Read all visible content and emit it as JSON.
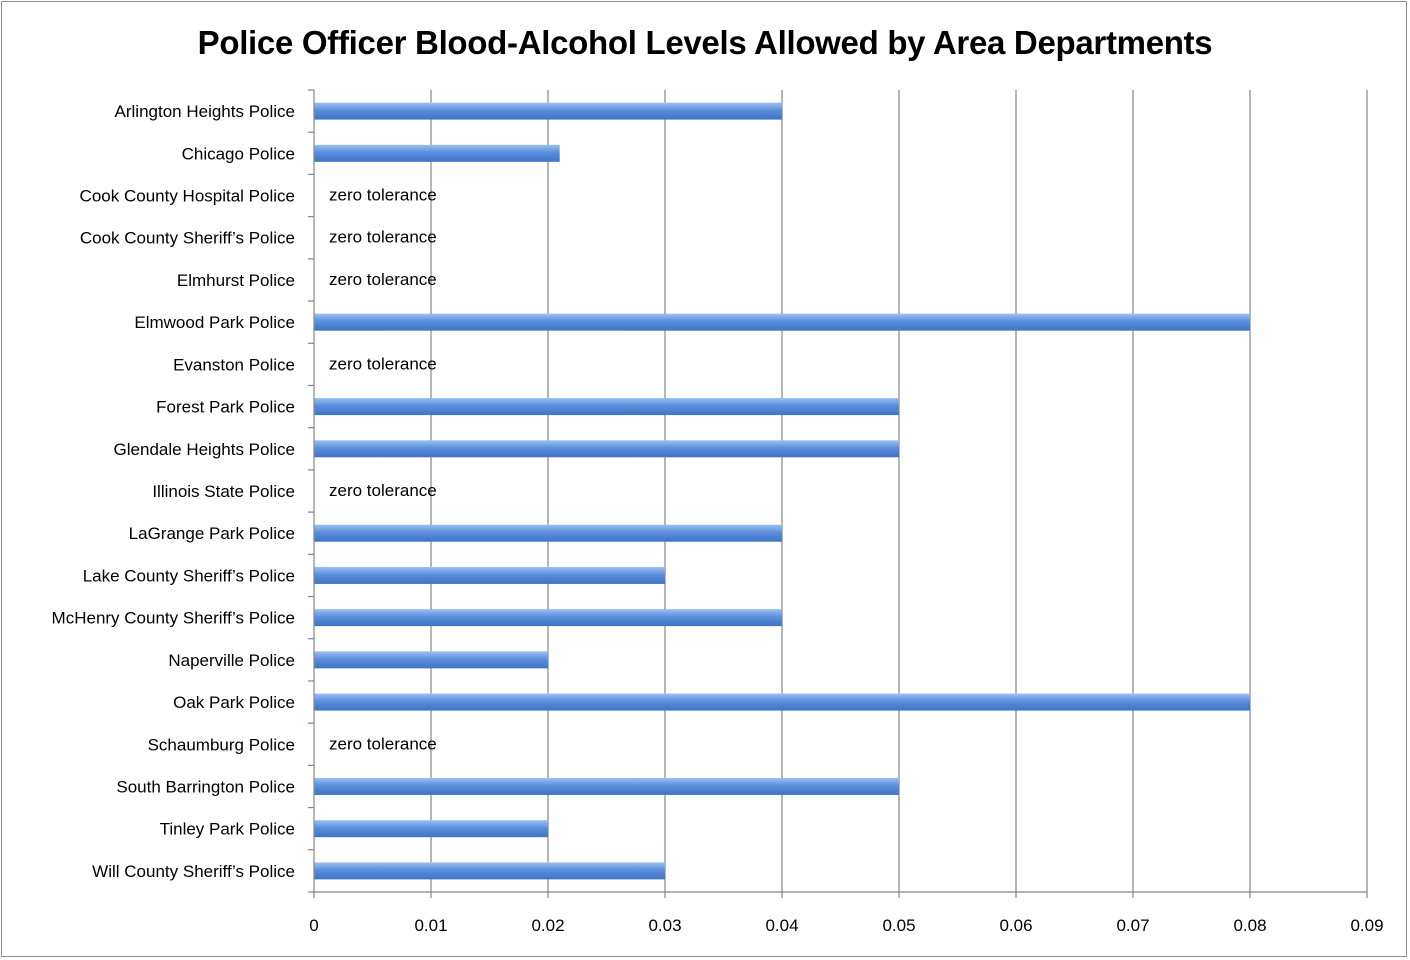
{
  "chart_data": {
    "type": "bar",
    "orientation": "horizontal",
    "title": "Police Officer Blood-Alcohol Levels Allowed by Area Departments",
    "xlabel": "",
    "ylabel": "",
    "xlim": [
      0,
      0.09
    ],
    "x_ticks": [
      "0",
      "0.01",
      "0.02",
      "0.03",
      "0.04",
      "0.05",
      "0.06",
      "0.07",
      "0.08",
      "0.09"
    ],
    "grid": "vertical",
    "bar_color": "#5b8fdc",
    "grid_color": "#868686",
    "categories": [
      "Arlington Heights Police",
      "Chicago Police",
      "Cook County Hospital Police",
      "Cook County Sheriff’s Police",
      "Elmhurst Police",
      "Elmwood Park Police",
      "Evanston Police",
      "Forest Park Police",
      "Glendale Heights Police",
      "Illinois State Police",
      "LaGrange Park Police",
      "Lake County Sheriff’s Police",
      "McHenry County Sheriff’s Police",
      "Naperville Police",
      "Oak Park Police",
      "Schaumburg Police",
      "South Barrington Police",
      "Tinley Park Police",
      "Will County Sheriff’s Police"
    ],
    "values": [
      0.04,
      0.021,
      0,
      0,
      0,
      0.08,
      0,
      0.05,
      0.05,
      0,
      0.04,
      0.03,
      0.04,
      0.02,
      0.08,
      0,
      0.05,
      0.02,
      0.03
    ],
    "annotations": [
      "",
      "",
      "zero tolerance",
      "zero tolerance",
      "zero tolerance",
      "",
      "zero tolerance",
      "",
      "",
      "zero tolerance",
      "",
      "",
      "",
      "",
      "",
      "zero tolerance",
      "",
      "",
      ""
    ]
  }
}
